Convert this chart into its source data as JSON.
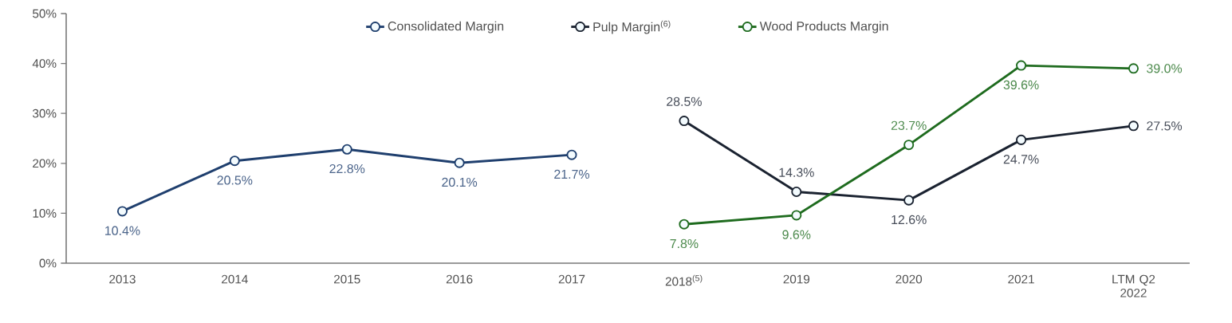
{
  "chart_data": {
    "type": "line",
    "categories": [
      "2013",
      "2014",
      "2015",
      "2016",
      "2017",
      "2018$^{(5)}$",
      "2019",
      "2020",
      "2021",
      "LTM Q2 2022"
    ],
    "series": [
      {
        "name": "Consolidated Margin",
        "color": "#1f3f6e",
        "values": [
          10.4,
          20.5,
          22.8,
          20.1,
          21.7,
          null,
          null,
          null,
          null,
          null
        ],
        "value_labels": [
          "10.4%",
          "20.5%",
          "22.8%",
          "20.1%",
          "21.7%",
          null,
          null,
          null,
          null,
          null
        ]
      },
      {
        "name": "Pulp Margin$^{(6)}$",
        "color": "#1a2230",
        "values": [
          null,
          null,
          null,
          null,
          null,
          28.5,
          14.3,
          12.6,
          24.7,
          27.5
        ],
        "value_labels": [
          null,
          null,
          null,
          null,
          null,
          "28.5%",
          "14.3%",
          "12.6%",
          "24.7%",
          "27.5%"
        ]
      },
      {
        "name": "Wood Products Margin",
        "color": "#1e6b1e",
        "values": [
          null,
          null,
          null,
          null,
          null,
          7.8,
          9.6,
          23.7,
          39.6,
          39.0
        ],
        "value_labels": [
          null,
          null,
          null,
          null,
          null,
          "7.8%",
          "9.6%",
          "23.7%",
          "39.6%",
          "39.0%"
        ]
      }
    ],
    "ylim": [
      0,
      50
    ],
    "yticks": [
      {
        "value": 0,
        "label": "0%"
      },
      {
        "value": 10,
        "label": "10%"
      },
      {
        "value": 20,
        "label": "20%"
      },
      {
        "value": 30,
        "label": "30%"
      },
      {
        "value": 40,
        "label": "40%"
      },
      {
        "value": 50,
        "label": "50%"
      }
    ],
    "legend": "top",
    "marker": "circle",
    "line_style": "solid",
    "grid": false
  }
}
